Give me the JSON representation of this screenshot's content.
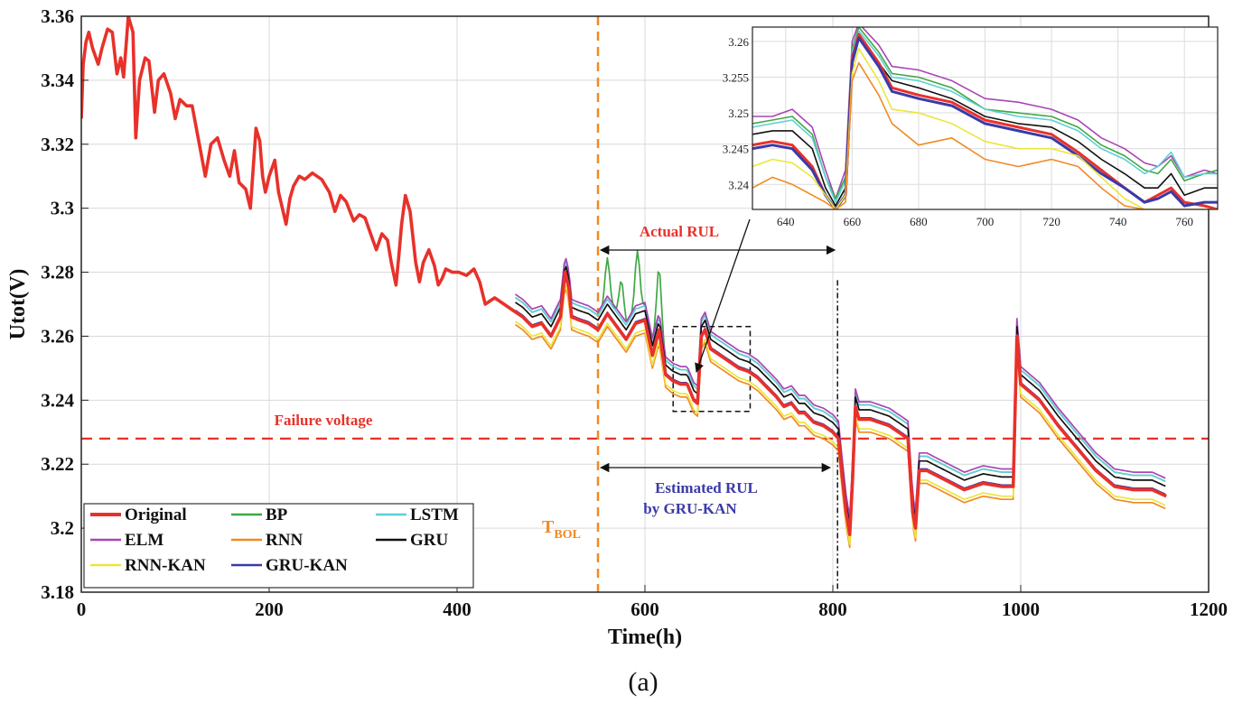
{
  "chart_data": {
    "type": "line",
    "caption": "(a)",
    "xlabel": "Time(h)",
    "ylabel": "Utot(V)",
    "xlim": [
      0,
      1200
    ],
    "ylim": [
      3.18,
      3.36
    ],
    "xticks": [
      "0",
      "200",
      "400",
      "600",
      "800",
      "1000",
      "1200"
    ],
    "yticks": [
      "3.18",
      "3.2",
      "3.22",
      "3.24",
      "3.26",
      "3.28",
      "3.3",
      "3.32",
      "3.34",
      "3.36"
    ],
    "grid": true,
    "legend_position": "bottom-left",
    "failure_voltage": {
      "label": "Failure voltage",
      "value": 3.228,
      "color": "#e8312a"
    },
    "t_bol": {
      "label": "T",
      "subscript": "BOL",
      "x": 550,
      "color": "#f08a24"
    },
    "actual_rul": {
      "label": "Actual RUL",
      "from": 550,
      "to": 805,
      "color": "#e8312a"
    },
    "estimated_rul": {
      "label_line1": "Estimated RUL",
      "label_line2": "by GRU-KAN",
      "from": 550,
      "to": 800,
      "color": "#3a3aa8"
    },
    "zoom_box": {
      "x": [
        630,
        712
      ],
      "y": [
        3.2365,
        3.263
      ]
    },
    "inset": {
      "xlim": [
        630,
        770
      ],
      "ylim": [
        3.2365,
        3.262
      ],
      "xticks": [
        "640",
        "660",
        "680",
        "700",
        "720",
        "740",
        "760"
      ],
      "yticks": [
        "3.24",
        "3.245",
        "3.25",
        "3.255",
        "3.26"
      ]
    },
    "original_series": {
      "name": "Original",
      "color": "#e8312a",
      "x": [
        0,
        2,
        5,
        8,
        12,
        18,
        22,
        28,
        33,
        38,
        42,
        45,
        48,
        50,
        52,
        55,
        58,
        62,
        68,
        72,
        78,
        82,
        88,
        95,
        100,
        105,
        112,
        118,
        125,
        132,
        138,
        145,
        152,
        158,
        163,
        168,
        175,
        180,
        186,
        190,
        193,
        196,
        200,
        206,
        210,
        214,
        218,
        222,
        226,
        232,
        238,
        246,
        256,
        264,
        270,
        276,
        282,
        290,
        296,
        302,
        308,
        314,
        320,
        326,
        330,
        335,
        338,
        341,
        345,
        350,
        356,
        360,
        364,
        370,
        376,
        380,
        384,
        388,
        395,
        402,
        410,
        418,
        424,
        430,
        440,
        450,
        460,
        470,
        480,
        490,
        500,
        510,
        515,
        519,
        522,
        530,
        540,
        550,
        560,
        570,
        580,
        590,
        600,
        608,
        615,
        622,
        630,
        638,
        645,
        652,
        656,
        660,
        664,
        670,
        680,
        690,
        700,
        710,
        720,
        730,
        740,
        748,
        756,
        764,
        770,
        780,
        790,
        800,
        806,
        810,
        814,
        818,
        821,
        824,
        828,
        840,
        860,
        880,
        885,
        888,
        892,
        900,
        920,
        940,
        960,
        980,
        988,
        992,
        996,
        1000,
        1020,
        1040,
        1060,
        1080,
        1100,
        1120,
        1140,
        1155
      ],
      "y": [
        3.328,
        3.345,
        3.352,
        3.355,
        3.35,
        3.345,
        3.35,
        3.356,
        3.355,
        3.342,
        3.347,
        3.341,
        3.352,
        3.36,
        3.358,
        3.355,
        3.322,
        3.34,
        3.347,
        3.346,
        3.33,
        3.34,
        3.342,
        3.336,
        3.328,
        3.334,
        3.332,
        3.332,
        3.321,
        3.31,
        3.32,
        3.322,
        3.315,
        3.31,
        3.318,
        3.308,
        3.306,
        3.3,
        3.325,
        3.321,
        3.31,
        3.305,
        3.31,
        3.315,
        3.305,
        3.3,
        3.295,
        3.303,
        3.307,
        3.31,
        3.309,
        3.311,
        3.309,
        3.305,
        3.299,
        3.304,
        3.302,
        3.296,
        3.298,
        3.297,
        3.292,
        3.287,
        3.292,
        3.29,
        3.283,
        3.276,
        3.285,
        3.295,
        3.304,
        3.299,
        3.283,
        3.277,
        3.283,
        3.287,
        3.282,
        3.276,
        3.278,
        3.281,
        3.28,
        3.28,
        3.279,
        3.281,
        3.277,
        3.27,
        3.272,
        3.27,
        3.268,
        3.266,
        3.263,
        3.264,
        3.26,
        3.266,
        3.28,
        3.275,
        3.266,
        3.265,
        3.264,
        3.262,
        3.267,
        3.263,
        3.259,
        3.264,
        3.265,
        3.254,
        3.262,
        3.248,
        3.246,
        3.245,
        3.245,
        3.24,
        3.239,
        3.26,
        3.262,
        3.256,
        3.254,
        3.252,
        3.25,
        3.249,
        3.247,
        3.244,
        3.241,
        3.238,
        3.239,
        3.236,
        3.236,
        3.233,
        3.232,
        3.23,
        3.228,
        3.216,
        3.205,
        3.198,
        3.215,
        3.238,
        3.234,
        3.234,
        3.232,
        3.228,
        3.205,
        3.2,
        3.218,
        3.218,
        3.215,
        3.212,
        3.214,
        3.213,
        3.213,
        3.213,
        3.26,
        3.245,
        3.24,
        3.232,
        3.225,
        3.218,
        3.213,
        3.212,
        3.212,
        3.21
      ]
    },
    "series": [
      {
        "name": "Original",
        "color": "#e8312a",
        "offset": 0,
        "spike_amp": 0
      },
      {
        "name": "BP",
        "color": "#3fa845",
        "offset": 0.0045,
        "spike_amp": 0.02
      },
      {
        "name": "LSTM",
        "color": "#5fcfd6",
        "offset": 0.0045,
        "spike_amp": 0
      },
      {
        "name": "ELM",
        "color": "#a845b5",
        "offset": 0.0055,
        "spike_amp": 0
      },
      {
        "name": "RNN",
        "color": "#f08a24",
        "offset": -0.004,
        "spike_amp": 0
      },
      {
        "name": "GRU",
        "color": "#111111",
        "offset": 0.003,
        "spike_amp": 0
      },
      {
        "name": "RNN-KAN",
        "color": "#ece63a",
        "offset": -0.003,
        "spike_amp": 0
      },
      {
        "name": "GRU-KAN",
        "color": "#3a3aa8",
        "offset": 0.0005,
        "spike_amp": 0
      }
    ],
    "inset_series": [
      {
        "name": "ELM",
        "color": "#a845b5",
        "x": [
          630,
          636,
          642,
          648,
          652,
          655,
          658,
          660,
          662,
          668,
          672,
          680,
          690,
          700,
          710,
          720,
          728,
          735,
          742,
          748,
          752,
          756,
          760,
          766,
          770
        ],
        "y": [
          3.2495,
          3.2495,
          3.2505,
          3.248,
          3.242,
          3.238,
          3.242,
          3.26,
          3.2625,
          3.2595,
          3.2565,
          3.256,
          3.2545,
          3.252,
          3.2515,
          3.2505,
          3.249,
          3.2465,
          3.245,
          3.243,
          3.2425,
          3.244,
          3.241,
          3.242,
          3.2415
        ]
      },
      {
        "name": "BP",
        "color": "#3fa845",
        "x": [
          630,
          636,
          642,
          648,
          652,
          655,
          658,
          660,
          662,
          668,
          672,
          680,
          690,
          700,
          710,
          720,
          728,
          735,
          742,
          748,
          752,
          756,
          760,
          766,
          770
        ],
        "y": [
          3.2485,
          3.249,
          3.2495,
          3.247,
          3.241,
          3.238,
          3.241,
          3.259,
          3.262,
          3.2585,
          3.2555,
          3.255,
          3.2535,
          3.2505,
          3.25,
          3.2495,
          3.248,
          3.2455,
          3.244,
          3.242,
          3.2415,
          3.2435,
          3.2405,
          3.2415,
          3.242
        ]
      },
      {
        "name": "LSTM",
        "color": "#5fcfd6",
        "x": [
          630,
          636,
          642,
          648,
          652,
          655,
          658,
          660,
          662,
          668,
          672,
          680,
          690,
          700,
          710,
          720,
          728,
          735,
          742,
          748,
          752,
          756,
          760,
          766,
          770
        ],
        "y": [
          3.248,
          3.2485,
          3.249,
          3.2465,
          3.241,
          3.2375,
          3.2405,
          3.2585,
          3.2615,
          3.258,
          3.255,
          3.2545,
          3.253,
          3.2505,
          3.2495,
          3.249,
          3.2475,
          3.245,
          3.2435,
          3.2415,
          3.2425,
          3.2445,
          3.241,
          3.2415,
          3.2415
        ]
      },
      {
        "name": "GRU",
        "color": "#111111",
        "x": [
          630,
          636,
          642,
          648,
          652,
          655,
          658,
          660,
          662,
          668,
          672,
          680,
          690,
          700,
          710,
          720,
          728,
          735,
          742,
          748,
          752,
          756,
          760,
          766,
          770
        ],
        "y": [
          3.247,
          3.2475,
          3.2475,
          3.245,
          3.2395,
          3.237,
          3.2395,
          3.258,
          3.261,
          3.257,
          3.2545,
          3.2535,
          3.252,
          3.2495,
          3.2485,
          3.248,
          3.246,
          3.2435,
          3.2415,
          3.2395,
          3.2395,
          3.2415,
          3.2385,
          3.2395,
          3.2395
        ]
      },
      {
        "name": "Original",
        "color": "#e8312a",
        "x": [
          630,
          636,
          642,
          648,
          652,
          655,
          658,
          660,
          662,
          668,
          672,
          680,
          690,
          700,
          710,
          720,
          728,
          735,
          742,
          748,
          752,
          756,
          760,
          766,
          770
        ],
        "y": [
          3.2455,
          3.246,
          3.2455,
          3.2425,
          3.2385,
          3.2365,
          3.2385,
          3.2575,
          3.261,
          3.257,
          3.2535,
          3.2525,
          3.2515,
          3.249,
          3.248,
          3.247,
          3.2445,
          3.242,
          3.2395,
          3.2375,
          3.2385,
          3.2395,
          3.2375,
          3.237,
          3.2365
        ]
      },
      {
        "name": "GRU-KAN",
        "color": "#3a3aa8",
        "x": [
          630,
          636,
          642,
          648,
          652,
          655,
          658,
          660,
          662,
          668,
          672,
          680,
          690,
          700,
          710,
          720,
          728,
          735,
          742,
          748,
          752,
          756,
          760,
          766,
          770
        ],
        "y": [
          3.245,
          3.2455,
          3.245,
          3.242,
          3.2385,
          3.2365,
          3.2385,
          3.257,
          3.2605,
          3.2565,
          3.253,
          3.252,
          3.251,
          3.2485,
          3.2475,
          3.2465,
          3.244,
          3.2415,
          3.2395,
          3.2375,
          3.238,
          3.239,
          3.237,
          3.2375,
          3.2375
        ]
      },
      {
        "name": "RNN-KAN",
        "color": "#ece63a",
        "x": [
          630,
          636,
          642,
          648,
          652,
          655,
          658,
          660,
          662,
          668,
          672,
          680,
          690,
          700,
          710,
          720,
          728,
          735,
          742,
          748,
          752,
          756,
          760,
          766,
          770
        ],
        "y": [
          3.2425,
          3.2435,
          3.243,
          3.241,
          3.2385,
          3.2365,
          3.2385,
          3.2555,
          3.259,
          3.2545,
          3.2505,
          3.25,
          3.2485,
          3.246,
          3.245,
          3.245,
          3.244,
          3.241,
          3.238,
          3.2365,
          3.2365,
          3.2365,
          3.2365,
          3.2365,
          3.2365
        ]
      },
      {
        "name": "RNN",
        "color": "#f08a24",
        "x": [
          630,
          636,
          642,
          648,
          652,
          655,
          658,
          660,
          662,
          668,
          672,
          680,
          690,
          700,
          710,
          720,
          728,
          735,
          742,
          748,
          752,
          756,
          760,
          766,
          770
        ],
        "y": [
          3.2395,
          3.241,
          3.24,
          3.2385,
          3.2375,
          3.2365,
          3.2375,
          3.2545,
          3.257,
          3.2525,
          3.2485,
          3.2455,
          3.2465,
          3.2435,
          3.2425,
          3.2435,
          3.2425,
          3.2395,
          3.237,
          3.2365,
          3.2365,
          3.2365,
          3.2365,
          3.2365,
          3.2365
        ]
      }
    ]
  }
}
